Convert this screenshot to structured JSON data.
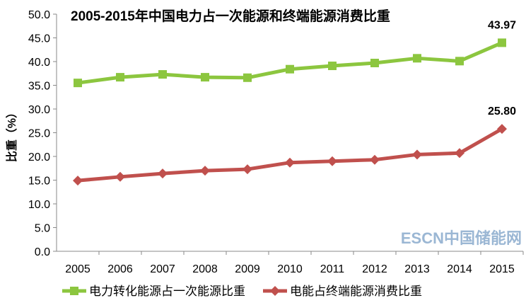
{
  "chart_data": {
    "type": "line",
    "title": "2005-2015年中国电力占一次能源和终端能源消费比重",
    "ylabel": "比重（%）",
    "xlabel": "",
    "ylim": [
      0,
      50
    ],
    "yticks": [
      "0.0",
      "5.0",
      "10.0",
      "15.0",
      "20.0",
      "25.0",
      "30.0",
      "35.0",
      "40.0",
      "45.0",
      "50.0"
    ],
    "categories": [
      "2005",
      "2006",
      "2007",
      "2008",
      "2009",
      "2010",
      "2011",
      "2012",
      "2013",
      "2014",
      "2015"
    ],
    "grid": false,
    "legend": "bottom",
    "series": [
      {
        "name": "电力转化能源占一次能源比重",
        "color": "#8cc63f",
        "marker": "square",
        "values": [
          35.5,
          36.7,
          37.3,
          36.7,
          36.6,
          38.4,
          39.1,
          39.7,
          40.7,
          40.1,
          43.97
        ],
        "end_label": "43.97"
      },
      {
        "name": "电能占终端能源消费比重",
        "color": "#c0504d",
        "marker": "diamond",
        "values": [
          14.9,
          15.7,
          16.4,
          17.0,
          17.3,
          18.7,
          19.0,
          19.3,
          20.4,
          20.7,
          25.8
        ],
        "end_label": "25.80"
      }
    ]
  },
  "watermark": "ESCN中国储能网"
}
